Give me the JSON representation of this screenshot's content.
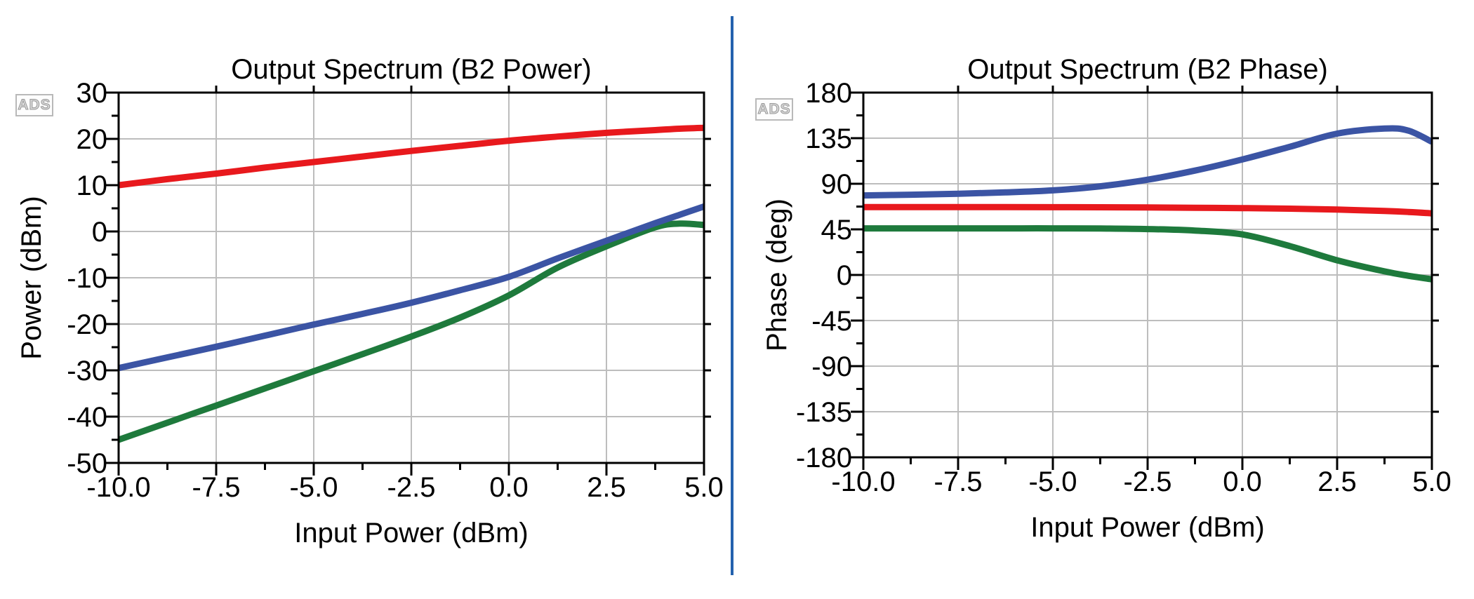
{
  "page": {
    "background": "#ffffff",
    "divider_color": "#2361ae"
  },
  "logo_text": "ADS",
  "chart_data": [
    {
      "type": "line",
      "title": "Output Spectrum (B2 Power)",
      "xlabel": "Input Power (dBm)",
      "ylabel": "Power (dBm)",
      "xlim": [
        -10,
        5
      ],
      "ylim": [
        -50,
        30
      ],
      "x_major_ticks": [
        -10,
        -7.5,
        -5,
        -2.5,
        0,
        2.5,
        5
      ],
      "x_tick_labels": [
        "-10.0",
        "-7.5",
        "-5.0",
        "-2.5",
        "0.0",
        "2.5",
        "5.0"
      ],
      "x_minor_step": 1.25,
      "y_major_ticks": [
        30,
        20,
        10,
        0,
        -10,
        -20,
        -30,
        -40,
        -50
      ],
      "y_minor_step": 5,
      "grid": true,
      "grid_color": "#bdbdbd",
      "legend": "none",
      "x": [
        -10,
        -8.75,
        -7.5,
        -6.25,
        -5,
        -3.75,
        -2.5,
        -1.25,
        0,
        1.25,
        2.5,
        3.75,
        4.375,
        5
      ],
      "series": [
        {
          "name": "red",
          "color": "#e8191d",
          "values": [
            10.0,
            11.3,
            12.5,
            13.8,
            15.0,
            16.2,
            17.4,
            18.5,
            19.6,
            20.5,
            21.3,
            21.9,
            22.2,
            22.4
          ]
        },
        {
          "name": "green",
          "color": "#1e7a3c",
          "values": [
            -45.0,
            -41.3,
            -37.6,
            -33.9,
            -30.2,
            -26.5,
            -22.7,
            -18.6,
            -13.8,
            -7.8,
            -3.2,
            0.9,
            1.7,
            1.4
          ]
        },
        {
          "name": "blue",
          "color": "#3b54a4",
          "values": [
            -29.5,
            -27.2,
            -24.9,
            -22.5,
            -20.1,
            -17.8,
            -15.4,
            -12.7,
            -9.8,
            -5.8,
            -2.0,
            1.8,
            3.6,
            5.4
          ]
        }
      ]
    },
    {
      "type": "line",
      "title": "Output Spectrum (B2 Phase)",
      "xlabel": "Input Power (dBm)",
      "ylabel": "Phase (deg)",
      "xlim": [
        -10,
        5
      ],
      "ylim": [
        -180,
        180
      ],
      "x_major_ticks": [
        -10,
        -7.5,
        -5,
        -2.5,
        0,
        2.5,
        5
      ],
      "x_tick_labels": [
        "-10.0",
        "-7.5",
        "-5.0",
        "-2.5",
        "0.0",
        "2.5",
        "5.0"
      ],
      "x_minor_step": 1.25,
      "y_major_ticks": [
        180,
        135,
        90,
        45,
        0,
        -45,
        -90,
        -135,
        -180
      ],
      "y_minor_step": 22.5,
      "grid": true,
      "grid_color": "#bdbdbd",
      "legend": "none",
      "x": [
        -10,
        -8.75,
        -7.5,
        -6.25,
        -5,
        -3.75,
        -2.5,
        -1.25,
        0,
        1.25,
        2.5,
        3.75,
        4.375,
        5
      ],
      "series": [
        {
          "name": "red",
          "color": "#e8191d",
          "values": [
            67.0,
            67.0,
            67.0,
            67.0,
            66.9,
            66.8,
            66.6,
            66.3,
            66.0,
            65.4,
            64.5,
            63.2,
            62.2,
            60.8
          ]
        },
        {
          "name": "green",
          "color": "#1e7a3c",
          "values": [
            46.0,
            46.0,
            46.0,
            46.0,
            46.0,
            45.8,
            45.3,
            43.8,
            40.0,
            28.5,
            14.5,
            3.5,
            -0.8,
            -4.3
          ]
        },
        {
          "name": "blue",
          "color": "#3b54a4",
          "values": [
            78.5,
            79.2,
            80.2,
            81.5,
            83.5,
            87.5,
            94.0,
            103.0,
            114.0,
            126.5,
            139.5,
            144.5,
            142.5,
            131.5
          ]
        }
      ]
    }
  ]
}
